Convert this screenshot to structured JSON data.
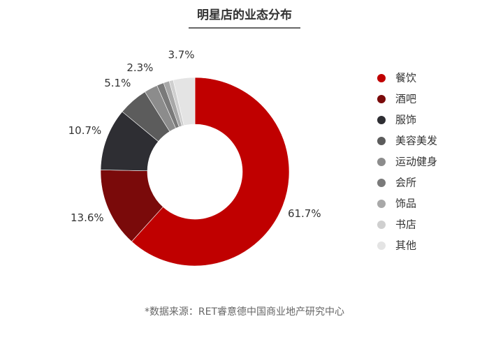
{
  "chart_data": {
    "type": "donut",
    "title": "明星店的业态分布",
    "categories": [
      "餐饮",
      "酒吧",
      "服饰",
      "美容美发",
      "运动健身",
      "会所",
      "饰品",
      "书店",
      "其他"
    ],
    "values": [
      61.7,
      13.6,
      10.7,
      5.1,
      2.3,
      1.2,
      1.0,
      0.7,
      3.7
    ],
    "value_labels": [
      "61.7%",
      "13.6%",
      "10.7%",
      "5.1%",
      "2.3%",
      null,
      null,
      null,
      "3.7%"
    ],
    "colors": [
      "#c00000",
      "#7a0a0a",
      "#2e2e33",
      "#5c5c5c",
      "#8c8c8c",
      "#7a7a7a",
      "#a8a8a8",
      "#cfcfcf",
      "#e4e4e4"
    ],
    "legend": "right",
    "source": "*数据来源：RET睿意德中国商业地产研究中心"
  }
}
